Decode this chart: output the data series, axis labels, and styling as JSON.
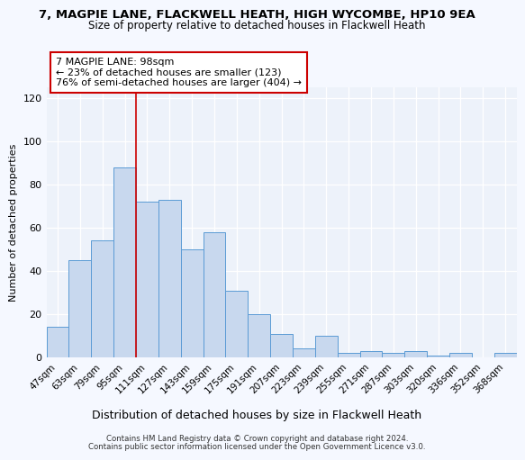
{
  "title1": "7, MAGPIE LANE, FLACKWELL HEATH, HIGH WYCOMBE, HP10 9EA",
  "title2": "Size of property relative to detached houses in Flackwell Heath",
  "xlabel": "Distribution of detached houses by size in Flackwell Heath",
  "ylabel": "Number of detached properties",
  "categories": [
    "47sqm",
    "63sqm",
    "79sqm",
    "95sqm",
    "111sqm",
    "127sqm",
    "143sqm",
    "159sqm",
    "175sqm",
    "191sqm",
    "207sqm",
    "223sqm",
    "239sqm",
    "255sqm",
    "271sqm",
    "287sqm",
    "303sqm",
    "320sqm",
    "336sqm",
    "352sqm",
    "368sqm"
  ],
  "values": [
    14,
    45,
    54,
    88,
    72,
    73,
    50,
    58,
    31,
    20,
    11,
    4,
    10,
    2,
    3,
    2,
    3,
    1,
    2,
    0,
    2
  ],
  "bar_color": "#c8d8ee",
  "bar_edge_color": "#5b9bd5",
  "vline_color": "#cc0000",
  "annotation_text": "7 MAGPIE LANE: 98sqm\n← 23% of detached houses are smaller (123)\n76% of semi-detached houses are larger (404) →",
  "annotation_box_color": "#ffffff",
  "annotation_box_edge": "#cc0000",
  "ylim": [
    0,
    125
  ],
  "yticks": [
    0,
    20,
    40,
    60,
    80,
    100,
    120
  ],
  "plot_bg": "#edf2fa",
  "fig_bg": "#f5f8ff",
  "footer1": "Contains HM Land Registry data © Crown copyright and database right 2024.",
  "footer2": "Contains public sector information licensed under the Open Government Licence v3.0."
}
